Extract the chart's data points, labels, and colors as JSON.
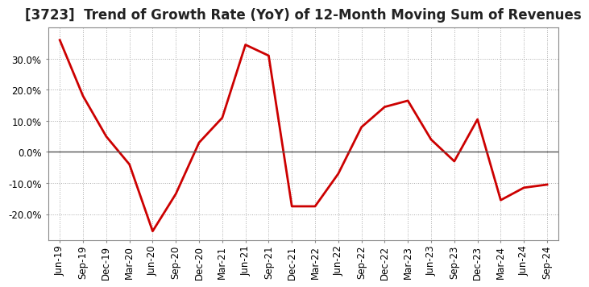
{
  "title": "[3723]  Trend of Growth Rate (YoY) of 12-Month Moving Sum of Revenues",
  "x_labels": [
    "Jun-19",
    "Sep-19",
    "Dec-19",
    "Mar-20",
    "Jun-20",
    "Sep-20",
    "Dec-20",
    "Mar-21",
    "Jun-21",
    "Sep-21",
    "Dec-21",
    "Mar-22",
    "Jun-22",
    "Sep-22",
    "Dec-22",
    "Mar-23",
    "Jun-23",
    "Sep-23",
    "Dec-23",
    "Mar-24",
    "Jun-24",
    "Sep-24"
  ],
  "y_values": [
    0.36,
    0.18,
    0.05,
    -0.04,
    -0.255,
    -0.135,
    0.03,
    0.11,
    0.345,
    0.31,
    -0.175,
    -0.175,
    -0.07,
    0.08,
    0.145,
    0.165,
    0.04,
    -0.03,
    0.105,
    -0.155,
    -0.115,
    -0.105
  ],
  "line_color": "#cc0000",
  "line_width": 2.0,
  "background_color": "#ffffff",
  "grid_color": "#aaaaaa",
  "zero_line_color": "#555555",
  "ylim": [
    -0.285,
    0.4
  ],
  "yticks": [
    -0.2,
    -0.1,
    0.0,
    0.1,
    0.2,
    0.3
  ],
  "title_fontsize": 12,
  "tick_fontsize": 8.5
}
